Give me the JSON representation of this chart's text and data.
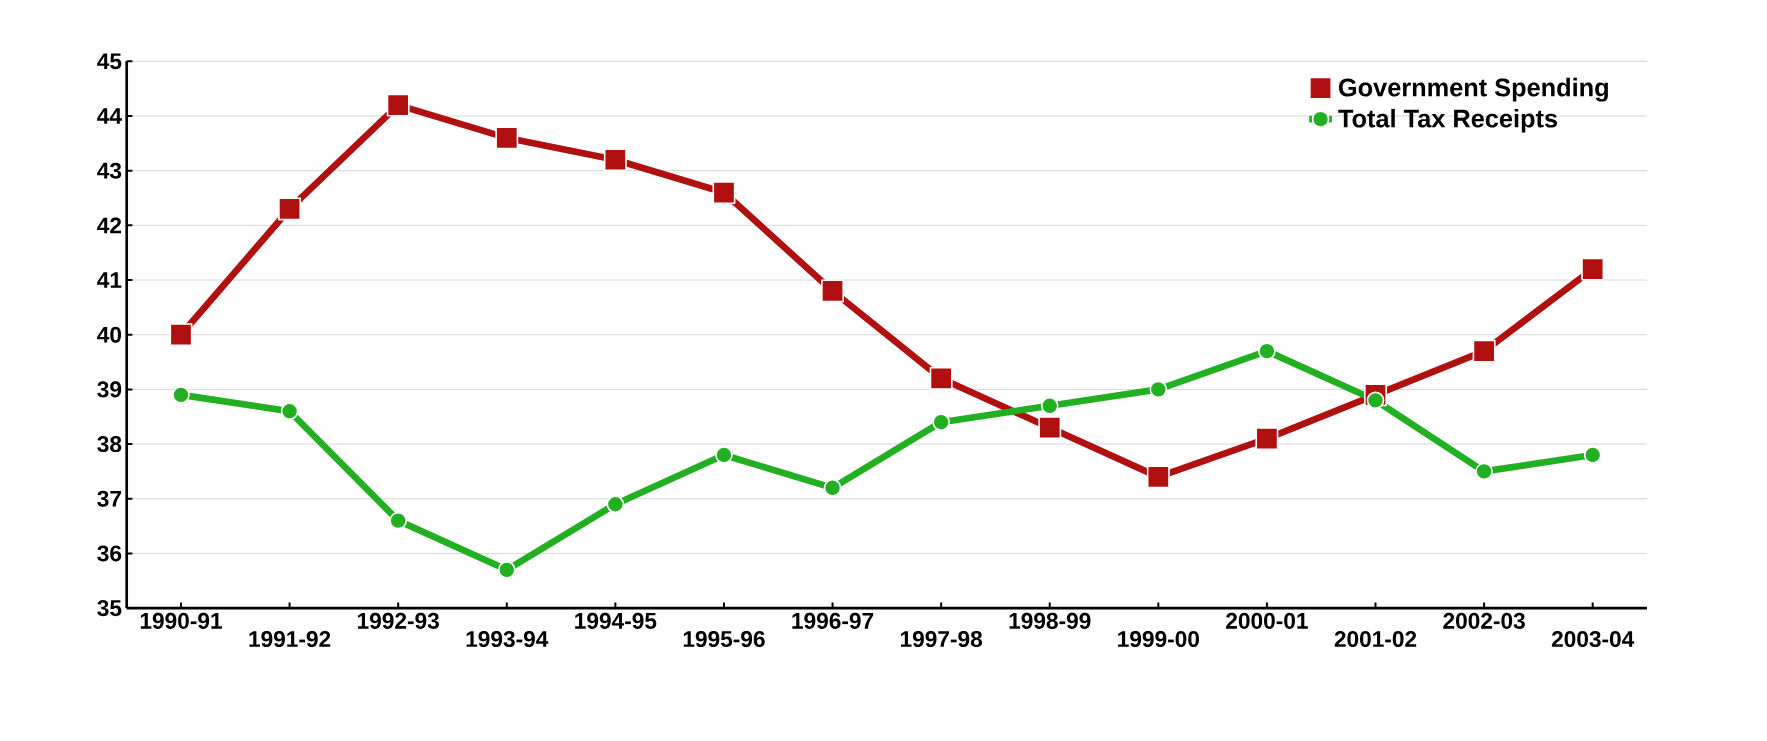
{
  "chart_data": {
    "type": "line",
    "categories": [
      "1990-91",
      "1991-92",
      "1992-93",
      "1993-94",
      "1994-95",
      "1995-96",
      "1996-97",
      "1997-98",
      "1998-99",
      "1999-00",
      "2000-01",
      "2001-02",
      "2002-03",
      "2003-04"
    ],
    "series": [
      {
        "name": "Government Spending",
        "color": "#b01010",
        "marker": "square",
        "values": [
          40.0,
          42.3,
          44.2,
          43.6,
          43.2,
          42.6,
          40.8,
          39.2,
          38.3,
          37.4,
          38.1,
          38.9,
          39.7,
          41.2
        ]
      },
      {
        "name": "Total Tax Receipts",
        "color": "#22b022",
        "marker": "circle",
        "values": [
          38.9,
          38.6,
          36.6,
          35.7,
          36.9,
          37.8,
          37.2,
          38.4,
          38.7,
          39.0,
          39.7,
          38.8,
          37.5,
          37.8
        ]
      }
    ],
    "ylim": [
      35,
      45
    ],
    "yticks": [
      35,
      36,
      37,
      38,
      39,
      40,
      41,
      42,
      43,
      44,
      45
    ],
    "grid": "y",
    "legend": "top right"
  }
}
